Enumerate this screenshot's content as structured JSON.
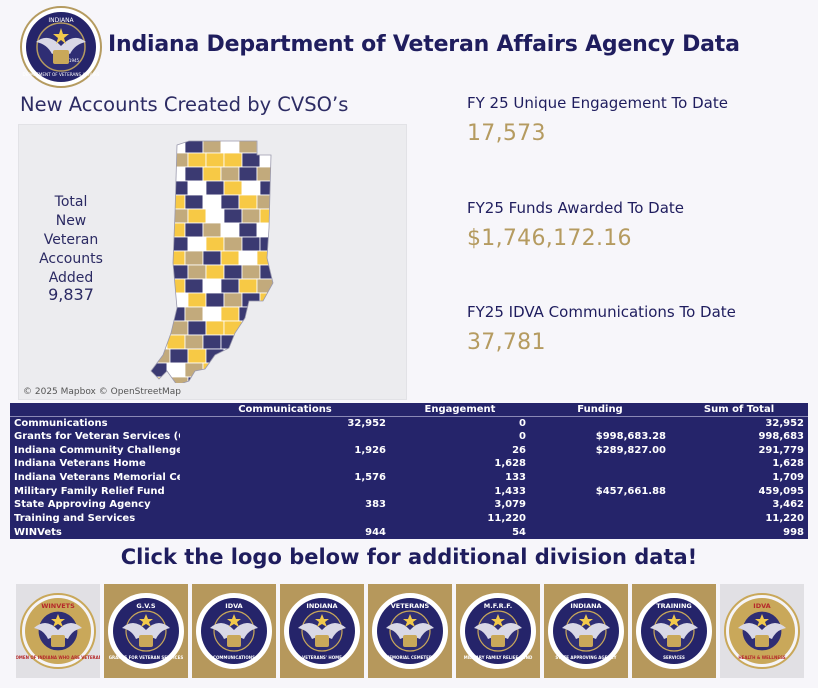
{
  "header": {
    "title": "Indiana Department of Veteran Affairs Agency Data",
    "seal_text_top": "INDIANA",
    "seal_text_bottom": "DEPARTMENT OF VETERANS AFFAIRS",
    "seal_year": "1945"
  },
  "map": {
    "title": "New Accounts Created by CVSO’s",
    "total_label": "Total New Veteran Accounts Added",
    "total_value": "9,837",
    "attribution": "© 2025 Mapbox © OpenStreetMap",
    "colors": {
      "navy": "#3b3a72",
      "tan": "#c2aa7c",
      "yellow": "#f7c945",
      "white": "#ffffff"
    }
  },
  "kpis": [
    {
      "label": "FY 25 Unique Engagement To Date",
      "value": "17,573"
    },
    {
      "label": "FY25 Funds Awarded To Date",
      "value": "$1,746,172.16"
    },
    {
      "label": "FY25 IDVA Communications To Date",
      "value": "37,781"
    }
  ],
  "table": {
    "headers": [
      "",
      "Communications",
      "Engagement",
      "Funding",
      "Sum of Total"
    ],
    "rows": [
      [
        "Communications",
        "32,952",
        "0",
        "",
        "32,952"
      ],
      [
        "Grants for Veteran Services (GVS)",
        "",
        "0",
        "$998,683.28",
        "998,683"
      ],
      [
        "Indiana Community Challenge",
        "1,926",
        "26",
        "$289,827.00",
        "291,779"
      ],
      [
        "Indiana Veterans Home",
        "",
        "1,628",
        "",
        "1,628"
      ],
      [
        "Indiana Veterans Memorial Cemetary",
        "1,576",
        "133",
        "",
        "1,709"
      ],
      [
        "Military Family Relief Fund",
        "",
        "1,433",
        "$457,661.88",
        "459,095"
      ],
      [
        "State Approving Agency",
        "383",
        "3,079",
        "",
        "3,462"
      ],
      [
        "Training and Services",
        "",
        "11,220",
        "",
        "11,220"
      ],
      [
        "WINVets",
        "944",
        "54",
        "",
        "998"
      ]
    ]
  },
  "cta": "Click the logo below for additional division data!",
  "logos": [
    {
      "name": "winvets-logo",
      "text": "WINVETS",
      "ring": "WOMEN OF INDIANA WHO ARE VETERANS",
      "bg": "#e1e0e4"
    },
    {
      "name": "gvs-logo",
      "text": "G.V.S",
      "ring": "GRANTS FOR VETERAN SERVICES",
      "bg": "#b6985c"
    },
    {
      "name": "idva-communications-logo",
      "text": "IDVA",
      "ring": "COMMUNICATIONS",
      "bg": "#b6985c"
    },
    {
      "name": "veterans-home-logo",
      "text": "INDIANA",
      "ring": "VETERANS' HOME",
      "bg": "#b6985c"
    },
    {
      "name": "memorial-cemetery-logo",
      "text": "VETERANS",
      "ring": "MEMORIAL CEMETERY",
      "bg": "#b6985c"
    },
    {
      "name": "mfrf-logo",
      "text": "M.F.R.F.",
      "ring": "MILITARY FAMILY RELIEF FUND",
      "bg": "#b6985c"
    },
    {
      "name": "state-approving-agency-logo",
      "text": "INDIANA",
      "ring": "STATE APPROVING AGENCY",
      "bg": "#b6985c"
    },
    {
      "name": "training-services-logo",
      "text": "TRAINING",
      "ring": "SERVICES",
      "bg": "#b6985c"
    },
    {
      "name": "health-wellness-logo",
      "text": "IDVA",
      "ring": "HEALTH & WELLNESS",
      "bg": "#e1e0e4"
    }
  ]
}
